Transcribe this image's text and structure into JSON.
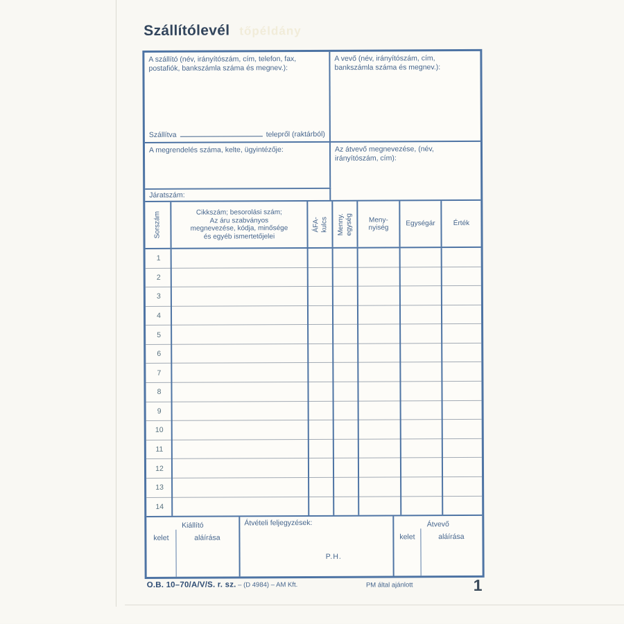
{
  "page": {
    "title": "Szállítólevél",
    "title_watermark": "tőpéldány",
    "copy_number": "1"
  },
  "colors": {
    "border_blue": "#4e74a4",
    "label_text": "#44648c",
    "row_line": "#a2aab4",
    "title_text": "#32455c",
    "paper": "#f9f8f3"
  },
  "supplier_box": {
    "label": "A szállító (név, irányítószám, cím, telefon, fax,\npostafiók, bankszámla száma és megnev.):",
    "shipped_prefix": "Szállítva",
    "shipped_suffix": "telepről (raktárból)"
  },
  "buyer_box": {
    "label": "A vevő (név, irányítószám, cím,\nbankszámla száma és megnev.):"
  },
  "order_box": {
    "label": "A megrendelés száma, kelte, ügyintézője:",
    "route_label": "Járatszám:"
  },
  "receiver_box": {
    "label": "Az átvevő megnevezése, (név,\nirányítószám, cím):"
  },
  "table": {
    "headers": {
      "serial": "Sorszám",
      "item": "Cikkszám; besorolási szám;\nAz áru szabványos\nmegnevezése, kódja, minősége\nés egyéb ismertetőjelei",
      "vat": "ÁFA-\nkulcs",
      "unit": "Menny.\negység",
      "qty": "Meny-\nnyiség",
      "unit_price": "Egységár",
      "value": "Érték"
    },
    "rows": [
      "1",
      "2",
      "3",
      "4",
      "5",
      "6",
      "7",
      "8",
      "9",
      "10",
      "11",
      "12",
      "13",
      "14"
    ]
  },
  "signatures": {
    "issuer": {
      "title": "Kiállító",
      "date_label": "kelet",
      "signature_label": "aláírása"
    },
    "notes": {
      "label": "Átvételi feljegyzések:",
      "stamp": "P.H."
    },
    "receiver": {
      "title": "Átvevő",
      "date_label": "kelet",
      "signature_label": "aláírása"
    }
  },
  "footer": {
    "left_bold": "O.B. 10–70/A/V/S. r. sz.",
    "left_regular": " – (D 4984) – AM Kft.",
    "center": "PM által ajánlott"
  }
}
